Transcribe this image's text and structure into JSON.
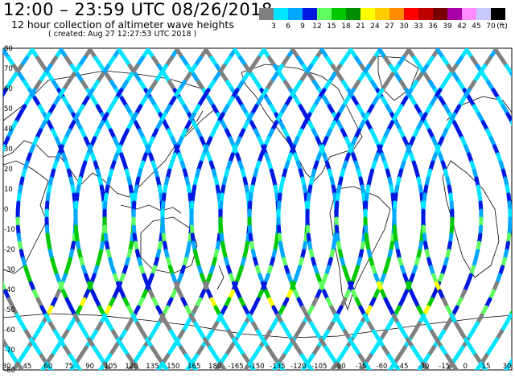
{
  "title": "12:00 – 23:59 UTC 08/26/2018",
  "subtitle": "12 hour collection of altimeter wave heights",
  "created": "( created: Aug 27 12:27:53 UTC 2018 )",
  "legend": {
    "unit": "(ft)",
    "bins": [
      {
        "label": "3",
        "color": "#808080"
      },
      {
        "label": "6",
        "color": "#00e5ff"
      },
      {
        "label": "9",
        "color": "#00a8ff"
      },
      {
        "label": "12",
        "color": "#0018e0"
      },
      {
        "label": "15",
        "color": "#60ff60"
      },
      {
        "label": "18",
        "color": "#00c800"
      },
      {
        "label": "21",
        "color": "#008c00"
      },
      {
        "label": "24",
        "color": "#ffff00"
      },
      {
        "label": "27",
        "color": "#ffcc00"
      },
      {
        "label": "30",
        "color": "#ff8c00"
      },
      {
        "label": "33",
        "color": "#ff0000"
      },
      {
        "label": "36",
        "color": "#c00000"
      },
      {
        "label": "39",
        "color": "#780000"
      },
      {
        "label": "42",
        "color": "#a800a8"
      },
      {
        "label": "45",
        "color": "#ff8cff"
      },
      {
        "label": "70",
        "color": "#c8c8ff"
      },
      {
        "label": "",
        "color": "#000000"
      }
    ]
  },
  "map": {
    "lat_labels": [
      "80",
      "70",
      "60",
      "50",
      "40",
      "30",
      "20",
      "10",
      "0",
      "-10",
      "-20",
      "-30",
      "-40",
      "-50",
      "-60",
      "-70",
      "-80"
    ],
    "lon_labels": [
      "30",
      "45",
      "60",
      "75",
      "90",
      "105",
      "120",
      "135",
      "150",
      "165",
      "180",
      "-165",
      "-150",
      "-135",
      "-120",
      "-105",
      "-90",
      "-75",
      "-60",
      "-45",
      "-30",
      "-15",
      "0",
      "15",
      "30"
    ]
  }
}
